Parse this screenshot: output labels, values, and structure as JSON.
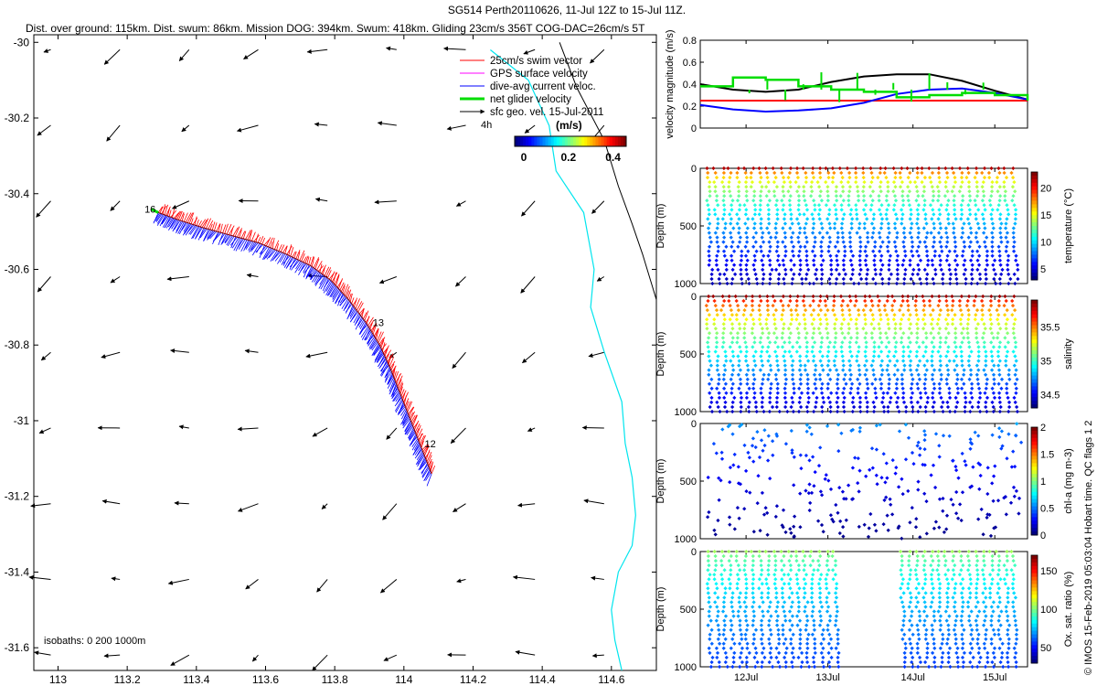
{
  "header": {
    "line1": "SG514 Perth20110626, 11-Jul 12Z to 15-Jul 11Z.",
    "line2": "Dist. over ground: 115km. Dist. swum: 86km. Mission DOG: 394km. Swum: 418km. Gliding 23cm/s 356T COG-DAC=26cm/s 5T"
  },
  "footer_text": "© IMOS 15-Feb-2019 05:03:04 Hobart time. QC flags 1  2",
  "colors": {
    "swim": "#ff0000",
    "gps": "#ff00ff",
    "dac": "#0000ff",
    "net": "#00dd00",
    "coast": "#00e5ee",
    "isobath": "#000000"
  },
  "chart_data": [
    {
      "type": "scatter",
      "x_ticks": [
        "113",
        "113.2",
        "113.4",
        "113.6",
        "113.8",
        "114",
        "114.2",
        "114.4",
        "114.6"
      ],
      "y_ticks": [
        "-30",
        "-30.2",
        "-30.4",
        "-30.6",
        "-30.8",
        "-31",
        "-31.2",
        "-31.4",
        "-31.6"
      ],
      "xlim": [
        112.93,
        114.73
      ],
      "ylim": [
        -31.66,
        -29.98
      ],
      "legend": {
        "position": "top-right",
        "items": [
          {
            "label": "25cm/s swim vector",
            "color": "#ff0000"
          },
          {
            "label": "GPS surface velocity",
            "color": "#ff00ff"
          },
          {
            "label": "dive-avg current veloc.",
            "color": "#0000ff"
          },
          {
            "label": "net glider velocity",
            "color": "#00dd00"
          },
          {
            "label": "sfc geo. vel. 15-Jul-2011",
            "color": "#000000"
          }
        ],
        "scale_label": "4h"
      },
      "colorbar": {
        "title": "(m/s)",
        "ticks": [
          "0",
          "0.2",
          "0.4"
        ],
        "range": [
          0,
          0.5
        ]
      },
      "track_labels": [
        {
          "text": "16",
          "lon": 113.25,
          "lat": -30.45
        },
        {
          "text": "13",
          "lon": 113.91,
          "lat": -30.75
        },
        {
          "text": "12",
          "lon": 114.06,
          "lat": -31.07
        }
      ],
      "isobath_label": "isobaths: 0   200  1000m",
      "track": [
        [
          114.08,
          -31.14
        ],
        [
          114.05,
          -31.07
        ],
        [
          114.02,
          -31.0
        ],
        [
          113.99,
          -30.93
        ],
        [
          113.96,
          -30.86
        ],
        [
          113.93,
          -30.8
        ],
        [
          113.89,
          -30.74
        ],
        [
          113.84,
          -30.68
        ],
        [
          113.79,
          -30.63
        ],
        [
          113.73,
          -30.59
        ],
        [
          113.66,
          -30.56
        ],
        [
          113.58,
          -30.53
        ],
        [
          113.5,
          -30.51
        ],
        [
          113.42,
          -30.49
        ],
        [
          113.35,
          -30.47
        ],
        [
          113.29,
          -30.45
        ]
      ],
      "coast": [
        [
          114.25,
          -30.02
        ],
        [
          114.36,
          -30.1
        ],
        [
          114.42,
          -30.22
        ],
        [
          114.44,
          -30.34
        ],
        [
          114.52,
          -30.45
        ],
        [
          114.55,
          -30.6
        ],
        [
          114.54,
          -30.7
        ],
        [
          114.58,
          -30.82
        ],
        [
          114.63,
          -30.95
        ],
        [
          114.64,
          -31.06
        ],
        [
          114.66,
          -31.15
        ],
        [
          114.67,
          -31.25
        ],
        [
          114.66,
          -31.33
        ],
        [
          114.62,
          -31.4
        ],
        [
          114.6,
          -31.5
        ],
        [
          114.61,
          -31.58
        ],
        [
          114.63,
          -31.66
        ]
      ],
      "isobath": [
        [
          114.45,
          -30.0
        ],
        [
          114.5,
          -30.12
        ],
        [
          114.58,
          -30.26
        ],
        [
          114.62,
          -30.38
        ],
        [
          114.66,
          -30.48
        ],
        [
          114.69,
          -30.56
        ],
        [
          114.73,
          -30.68
        ]
      ]
    },
    {
      "type": "line",
      "ylabel": "velocity magnitude (m/s)",
      "ylim": [
        0,
        0.8
      ],
      "y_ticks": [
        "0",
        "0.2",
        "0.4",
        "0.6",
        "0.8"
      ],
      "x": [
        0,
        0.1,
        0.2,
        0.3,
        0.4,
        0.5,
        0.6,
        0.7,
        0.8,
        0.9,
        1.0
      ],
      "series": [
        {
          "color": "#000000",
          "values": [
            0.4,
            0.35,
            0.33,
            0.35,
            0.42,
            0.47,
            0.49,
            0.49,
            0.43,
            0.34,
            0.26
          ]
        },
        {
          "color": "#ff0000",
          "values": [
            0.25,
            0.25,
            0.25,
            0.25,
            0.25,
            0.25,
            0.25,
            0.25,
            0.25,
            0.25,
            0.25
          ]
        },
        {
          "color": "#0000ff",
          "values": [
            0.21,
            0.17,
            0.15,
            0.16,
            0.18,
            0.23,
            0.31,
            0.35,
            0.36,
            0.32,
            0.26
          ]
        },
        {
          "color": "#00dd00",
          "values": [
            0.38,
            0.46,
            0.44,
            0.38,
            0.35,
            0.33,
            0.28,
            0.3,
            0.32,
            0.3,
            0.25
          ]
        }
      ]
    },
    {
      "type": "scatter",
      "ylabel": "Depth (m)",
      "cblabel": "temperature (°C)",
      "ylim": [
        0,
        1000
      ],
      "y_ticks": [
        "0",
        "500",
        "1000"
      ],
      "cb_ticks": [
        "20",
        "15",
        "10",
        "5"
      ],
      "cb_range": [
        3,
        23
      ],
      "n_profiles": 21,
      "surface_value": 22,
      "deep_value": 4
    },
    {
      "type": "scatter",
      "ylabel": "Depth (m)",
      "cblabel": "salinity",
      "ylim": [
        0,
        1000
      ],
      "y_ticks": [
        "0",
        "500",
        "1000"
      ],
      "cb_ticks": [
        "35.5",
        "35",
        "34.5"
      ],
      "cb_range": [
        34.3,
        35.9
      ],
      "n_profiles": 21,
      "surface_value": 35.85,
      "deep_value": 34.4
    },
    {
      "type": "scatter",
      "ylabel": "Depth (m)",
      "cblabel": "chl-a (mg m-3)",
      "ylim": [
        0,
        1000
      ],
      "y_ticks": [
        "0",
        "500",
        "1000"
      ],
      "cb_ticks": [
        "2",
        "1.5",
        "1",
        "0.5",
        "0"
      ],
      "cb_range": [
        0,
        2
      ],
      "n_profiles": 21,
      "surface_value": 0.6,
      "deep_value": 0.02
    },
    {
      "type": "scatter",
      "ylabel": "Depth (m)",
      "cblabel": "Ox. sat. ratio (%)",
      "ylim": [
        0,
        1000
      ],
      "y_ticks": [
        "0",
        "500",
        "1000"
      ],
      "cb_ticks": [
        "150",
        "100",
        "50"
      ],
      "cb_range": [
        30,
        170
      ],
      "n_profiles": 21,
      "surface_value": 105,
      "deep_value": 55,
      "missing_profiles": [
        9,
        10,
        11,
        12
      ]
    }
  ],
  "time_axis": {
    "ticks": [
      "12Jul",
      "13Jul",
      "14Jul",
      "15Jul"
    ],
    "tick_fractions": [
      0.14,
      0.39,
      0.65,
      0.9
    ]
  }
}
